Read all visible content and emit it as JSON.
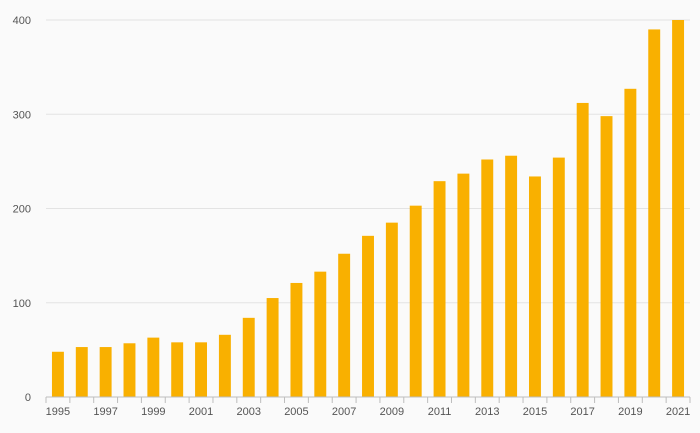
{
  "chart_data": {
    "type": "bar",
    "title": "",
    "xlabel": "",
    "ylabel": "",
    "categories": [
      "1995",
      "1996",
      "1997",
      "1998",
      "1999",
      "2000",
      "2001",
      "2002",
      "2003",
      "2004",
      "2005",
      "2006",
      "2007",
      "2008",
      "2009",
      "2010",
      "2011",
      "2012",
      "2013",
      "2014",
      "2015",
      "2016",
      "2017",
      "2018",
      "2019",
      "2020",
      "2021"
    ],
    "values": [
      48,
      53,
      53,
      57,
      63,
      58,
      58,
      66,
      84,
      105,
      121,
      133,
      152,
      171,
      185,
      203,
      229,
      237,
      252,
      256,
      234,
      254,
      312,
      298,
      327,
      390,
      400
    ],
    "x_tick_labels": [
      "1995",
      "1997",
      "1999",
      "2001",
      "2003",
      "2005",
      "2007",
      "2009",
      "2011",
      "2013",
      "2015",
      "2017",
      "2019",
      "2021"
    ],
    "y_ticks": [
      0,
      100,
      200,
      300,
      400
    ],
    "ylim": [
      0,
      400
    ],
    "grid": true,
    "legend": "none",
    "bar_color": "#f9b000"
  }
}
